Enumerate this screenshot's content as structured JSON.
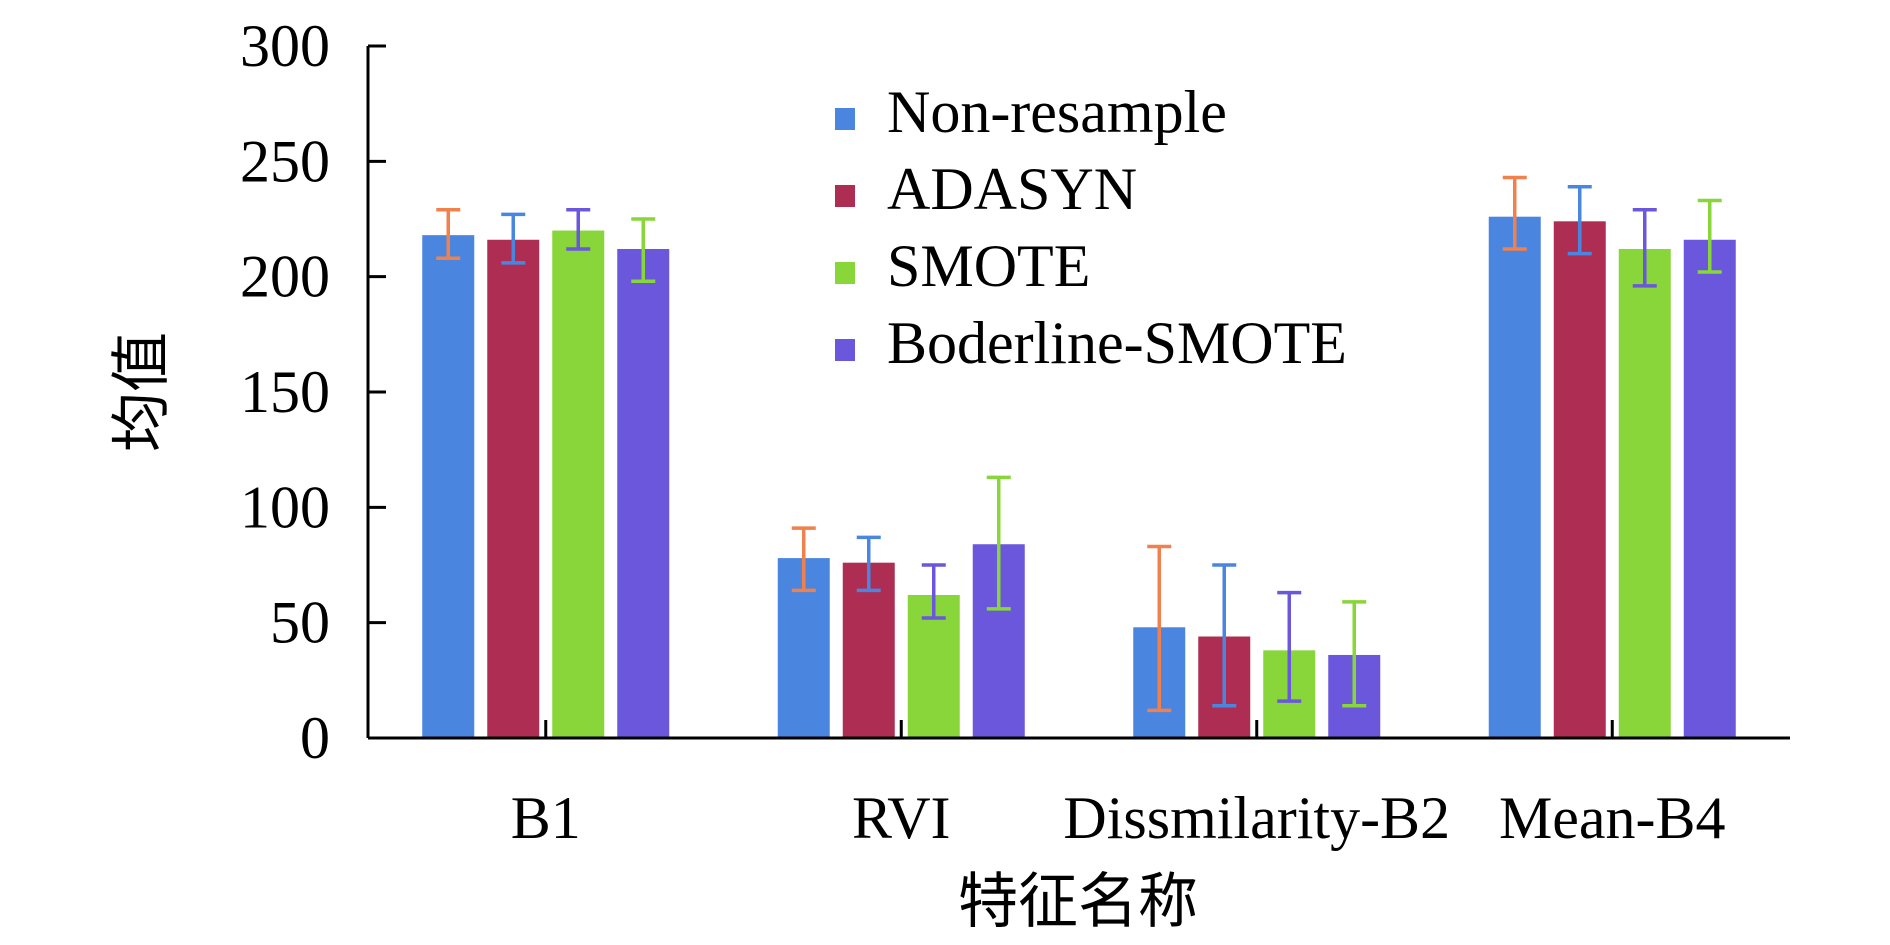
{
  "chart_data": {
    "type": "bar",
    "title": "",
    "xlabel": "特征名称",
    "ylabel": "均值",
    "ylim": [
      0,
      300
    ],
    "yticks": [
      0,
      50,
      100,
      150,
      200,
      250,
      300
    ],
    "grid": false,
    "legend_position": "top-center",
    "categories": [
      "B1",
      "RVI",
      "Dissmilarity-B2",
      "Mean-B4"
    ],
    "series": [
      {
        "name": "Non-resample",
        "color": "#4a86e0",
        "values": [
          218,
          78,
          48,
          226
        ],
        "error_low": [
          208,
          64,
          12,
          212
        ],
        "error_high": [
          229,
          91,
          83,
          243
        ],
        "error_colors": [
          "#f0804c",
          "#f0804c",
          "#f0804c",
          "#f0804c"
        ]
      },
      {
        "name": "ADASYN",
        "color": "#ad2e52",
        "values": [
          216,
          76,
          44,
          224
        ],
        "error_low": [
          206,
          64,
          14,
          210
        ],
        "error_high": [
          227,
          87,
          75,
          239
        ],
        "error_colors": [
          "#4a86e0",
          "#4a86e0",
          "#4a86e0",
          "#4a86e0"
        ]
      },
      {
        "name": "SMOTE",
        "color": "#88d63a",
        "values": [
          220,
          62,
          38,
          212
        ],
        "error_low": [
          212,
          52,
          16,
          196
        ],
        "error_high": [
          229,
          75,
          63,
          229
        ],
        "error_colors": [
          "#6b57dc",
          "#6b57dc",
          "#6b57dc",
          "#6b57dc"
        ]
      },
      {
        "name": "Boderline-SMOTE",
        "color": "#6b57dc",
        "values": [
          212,
          84,
          36,
          216
        ],
        "error_low": [
          198,
          56,
          14,
          202
        ],
        "error_high": [
          225,
          113,
          59,
          233
        ],
        "error_colors": [
          "#88d63a",
          "#88d63a",
          "#88d63a",
          "#88d63a"
        ]
      }
    ]
  }
}
